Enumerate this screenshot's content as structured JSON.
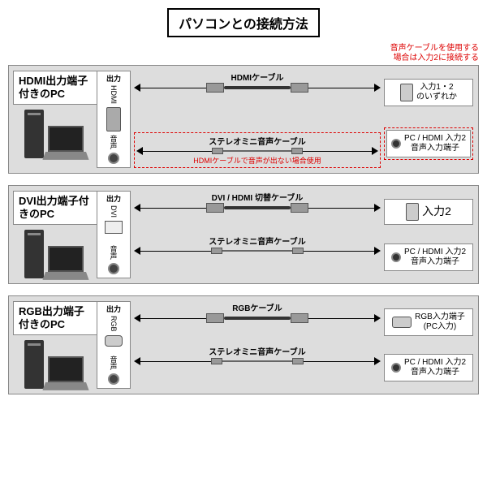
{
  "title": "パソコンとの接続方法",
  "top_note_line1": "音声ケーブルを使用する",
  "top_note_line2": "場合は入力2に接続する",
  "panels": [
    {
      "pc_label": "HDMI出力端子付きのPC",
      "port_header": "出力",
      "port_label": "HDMI",
      "audio_label": "音声",
      "cable1_label": "HDMIケーブル",
      "cable2_label": "ステレオミニ音声ケーブル",
      "dest1": "入力1・2\nのいずれか",
      "dest2": "PC / HDMI 入力2\n音声入力端子",
      "red_inline": "HDMIケーブルで音声が出ない場合使用",
      "port_type": "hdmi",
      "has_red_box": true
    },
    {
      "pc_label": "DVI出力端子付きのPC",
      "port_header": "出力",
      "port_label": "DVI",
      "audio_label": "音声",
      "cable1_label": "DVI / HDMI 切替ケーブル",
      "cable2_label": "ステレオミニ音声ケーブル",
      "dest1": "入力2",
      "dest2": "PC / HDMI 入力2\n音声入力端子",
      "port_type": "dvi",
      "has_red_box": false
    },
    {
      "pc_label": "RGB出力端子付きのPC",
      "port_header": "出力",
      "port_label": "RGB",
      "audio_label": "音声",
      "cable1_label": "RGBケーブル",
      "cable2_label": "ステレオミニ音声ケーブル",
      "dest1": "RGB入力端子\n(PC入力)",
      "dest2": "PC / HDMI 入力2\n音声入力端子",
      "port_type": "vga",
      "has_red_box": false
    }
  ],
  "colors": {
    "panel_bg": "#dddddd",
    "red": "#dd0000",
    "border": "#888888"
  }
}
